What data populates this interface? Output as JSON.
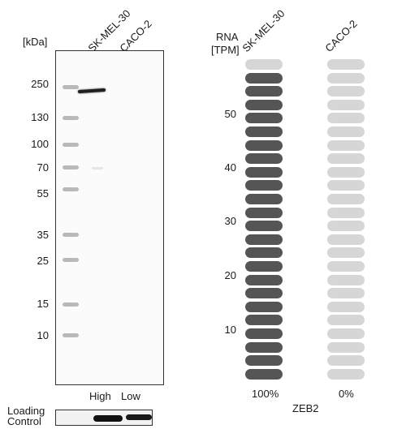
{
  "blot": {
    "kda_label": "[kDa]",
    "lanes": [
      "SK-MEL-30",
      "CACO-2"
    ],
    "mw_markers": [
      "250",
      "130",
      "100",
      "70",
      "55",
      "35",
      "25",
      "15",
      "10"
    ],
    "lane_levels": [
      "High",
      "Low"
    ],
    "loading_control_label": "Loading\nControl"
  },
  "rna": {
    "header_line1": "RNA",
    "header_line2": "[TPM]",
    "cell_lines": [
      "SK-MEL-30",
      "CACO-2"
    ],
    "ticks": [
      "50",
      "40",
      "30",
      "20",
      "10"
    ],
    "percentages": [
      "100%",
      "0%"
    ],
    "gene": "ZEB2",
    "colors": {
      "high": "#555555",
      "low": "#d6d6d6"
    }
  }
}
